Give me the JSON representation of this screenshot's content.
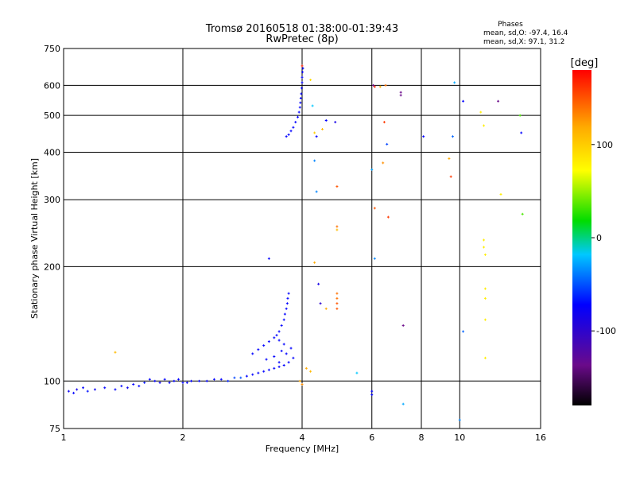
{
  "chart_data": {
    "type": "scatter",
    "title": "Tromsø 20160518 01:38:00-01:39:43",
    "subtitle": "RwPretec (8p)",
    "xlabel": "Frequency [MHz]",
    "ylabel": "Stationary phase Virtual Height [km]",
    "x_scale": "log",
    "y_scale": "log",
    "xlim": [
      1,
      16
    ],
    "ylim": [
      75,
      750
    ],
    "xticks": [
      1,
      2,
      4,
      6,
      8,
      10,
      16
    ],
    "yticks": [
      75,
      100,
      200,
      300,
      400,
      500,
      600,
      750
    ],
    "grid": true,
    "phases": {
      "heading": "Phases",
      "o_line": "mean, sd,O: -97.4, 16.4",
      "x_line": "mean, sd,X:  97.1, 31.2"
    },
    "colorbar": {
      "label": "[deg]",
      "range": [
        -180,
        180
      ],
      "ticks": [
        100,
        0,
        -100
      ],
      "stops": [
        "#000000",
        "#6a0a8a",
        "#0000ff",
        "#00c8ff",
        "#00dc00",
        "#ffff00",
        "#ffaa00",
        "#ff0000"
      ]
    },
    "series": [
      {
        "values": [
          [
            1.03,
            94,
            -105
          ],
          [
            1.06,
            93,
            -100
          ],
          [
            1.08,
            95,
            -110
          ],
          [
            1.12,
            96,
            -100
          ],
          [
            1.15,
            94,
            -95
          ],
          [
            1.2,
            95,
            -105
          ],
          [
            1.27,
            96,
            -100
          ],
          [
            1.35,
            95,
            -100
          ],
          [
            1.4,
            97,
            -98
          ],
          [
            1.45,
            96,
            -105
          ],
          [
            1.5,
            98,
            -100
          ],
          [
            1.55,
            97,
            -100
          ],
          [
            1.6,
            99,
            -95
          ],
          [
            1.65,
            101,
            -100
          ],
          [
            1.7,
            100,
            -100
          ],
          [
            1.75,
            99,
            -105
          ],
          [
            1.8,
            101,
            -100
          ],
          [
            1.85,
            99,
            -100
          ],
          [
            1.9,
            100,
            -100
          ],
          [
            1.95,
            101,
            -100
          ],
          [
            2.0,
            99,
            -100
          ],
          [
            2.05,
            99,
            -100
          ],
          [
            2.1,
            100,
            -100
          ],
          [
            2.2,
            100,
            -100
          ],
          [
            2.3,
            100,
            -100
          ],
          [
            2.4,
            101,
            -100
          ],
          [
            2.5,
            101,
            -100
          ],
          [
            2.6,
            100,
            -90
          ],
          [
            2.7,
            102,
            -80
          ],
          [
            2.8,
            102,
            -75
          ],
          [
            2.9,
            103,
            -100
          ],
          [
            3.0,
            104,
            -100
          ],
          [
            3.1,
            105,
            -100
          ],
          [
            3.2,
            106,
            -100
          ],
          [
            3.3,
            107,
            -100
          ],
          [
            3.4,
            108,
            -100
          ],
          [
            3.5,
            109,
            -100
          ],
          [
            3.6,
            110,
            -100
          ],
          [
            3.7,
            112,
            -100
          ],
          [
            3.8,
            115,
            -100
          ],
          [
            3.0,
            118,
            -100
          ],
          [
            3.1,
            121,
            -100
          ],
          [
            3.2,
            124,
            -100
          ],
          [
            3.3,
            127,
            -100
          ],
          [
            3.4,
            130,
            -100
          ],
          [
            3.5,
            135,
            -100
          ],
          [
            3.55,
            140,
            -100
          ],
          [
            3.6,
            145,
            -100
          ],
          [
            3.62,
            150,
            -100
          ],
          [
            3.65,
            155,
            -100
          ],
          [
            3.67,
            160,
            -100
          ],
          [
            3.68,
            165,
            -100
          ],
          [
            3.7,
            170,
            -100
          ],
          [
            3.6,
            125,
            -100
          ],
          [
            3.5,
            128,
            -100
          ],
          [
            3.45,
            132,
            -100
          ],
          [
            3.55,
            120,
            -100
          ],
          [
            3.65,
            118,
            -100
          ],
          [
            3.75,
            122,
            -100
          ],
          [
            3.4,
            116,
            -100
          ],
          [
            3.25,
            114,
            -100
          ],
          [
            3.5,
            112,
            -100
          ],
          [
            3.65,
            440,
            -100
          ],
          [
            3.7,
            445,
            -100
          ],
          [
            3.75,
            455,
            -100
          ],
          [
            3.8,
            465,
            -100
          ],
          [
            3.85,
            480,
            -100
          ],
          [
            3.9,
            495,
            -100
          ],
          [
            3.93,
            510,
            -100
          ],
          [
            3.95,
            525,
            -100
          ],
          [
            3.96,
            540,
            -100
          ],
          [
            3.97,
            555,
            -100
          ],
          [
            3.98,
            570,
            -100
          ],
          [
            3.99,
            590,
            -100
          ],
          [
            4.0,
            610,
            -100
          ],
          [
            4.0,
            630,
            -100
          ],
          [
            4.01,
            650,
            -100
          ],
          [
            4.02,
            665,
            -100
          ],
          [
            3.3,
            210,
            -100
          ],
          [
            4.0,
            675,
            170
          ],
          [
            4.2,
            620,
            90
          ],
          [
            4.25,
            530,
            -40
          ],
          [
            4.3,
            450,
            100
          ],
          [
            4.35,
            440,
            -100
          ],
          [
            4.5,
            460,
            110
          ],
          [
            4.6,
            485,
            -100
          ],
          [
            4.85,
            480,
            -110
          ],
          [
            4.3,
            380,
            -60
          ],
          [
            4.35,
            315,
            -60
          ],
          [
            4.9,
            325,
            150
          ],
          [
            4.9,
            255,
            140
          ],
          [
            4.9,
            250,
            110
          ],
          [
            4.3,
            205,
            120
          ],
          [
            4.4,
            180,
            -110
          ],
          [
            4.45,
            160,
            -120
          ],
          [
            4.6,
            155,
            120
          ],
          [
            4.9,
            170,
            140
          ],
          [
            4.9,
            165,
            140
          ],
          [
            4.9,
            160,
            150
          ],
          [
            4.9,
            155,
            150
          ],
          [
            4.1,
            108,
            120
          ],
          [
            4.2,
            106,
            110
          ],
          [
            4.0,
            98,
            130
          ],
          [
            5.5,
            105,
            -40
          ],
          [
            6.0,
            94,
            -100
          ],
          [
            6.0,
            92,
            -100
          ],
          [
            6.1,
            210,
            -60
          ],
          [
            6.05,
            600,
            -150
          ],
          [
            6.1,
            595,
            170
          ],
          [
            6.3,
            595,
            120
          ],
          [
            6.5,
            600,
            140
          ],
          [
            6.45,
            480,
            160
          ],
          [
            6.55,
            420,
            -80
          ],
          [
            6.0,
            360,
            -50
          ],
          [
            6.4,
            375,
            130
          ],
          [
            6.6,
            270,
            160
          ],
          [
            6.1,
            285,
            150
          ],
          [
            7.1,
            575,
            -150
          ],
          [
            7.1,
            565,
            -150
          ],
          [
            8.1,
            440,
            -100
          ],
          [
            9.6,
            440,
            -70
          ],
          [
            9.4,
            385,
            120
          ],
          [
            9.5,
            345,
            160
          ],
          [
            9.7,
            610,
            -50
          ],
          [
            10.2,
            545,
            -100
          ],
          [
            10.2,
            135,
            -70
          ],
          [
            10.0,
            79,
            -60
          ],
          [
            7.2,
            140,
            -150
          ],
          [
            7.2,
            87,
            -50
          ],
          [
            11.3,
            510,
            80
          ],
          [
            11.5,
            470,
            80
          ],
          [
            11.5,
            235,
            80
          ],
          [
            11.5,
            225,
            80
          ],
          [
            11.6,
            215,
            80
          ],
          [
            11.6,
            175,
            80
          ],
          [
            11.6,
            165,
            80
          ],
          [
            11.6,
            145,
            80
          ],
          [
            11.6,
            115,
            80
          ],
          [
            12.5,
            545,
            -150
          ],
          [
            12.7,
            310,
            80
          ],
          [
            14.2,
            500,
            20
          ],
          [
            14.3,
            450,
            -100
          ],
          [
            14.4,
            275,
            20
          ],
          [
            1.35,
            119,
            110
          ],
          [
            3.95,
            100,
            120
          ]
        ]
      }
    ]
  }
}
